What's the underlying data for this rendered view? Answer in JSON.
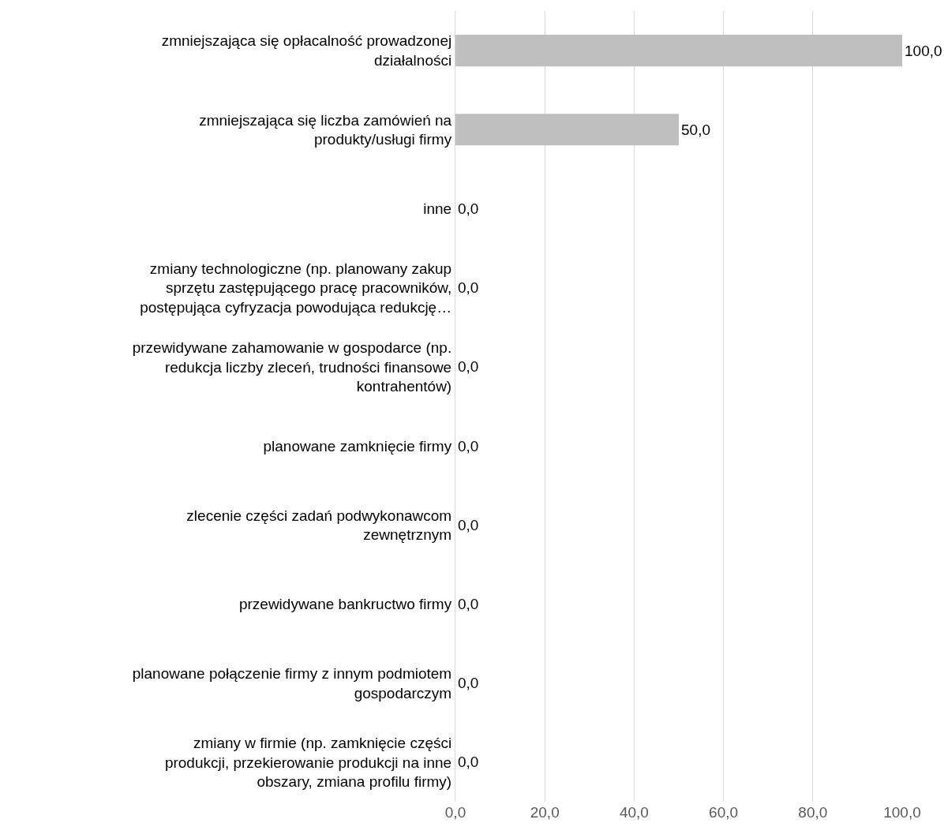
{
  "chart_data": {
    "type": "bar",
    "orientation": "horizontal",
    "categories": [
      "zmniejszająca się opłacalność prowadzonej działalności",
      "zmniejszająca się liczba zamówień na produkty/usługi firmy",
      "inne",
      "zmiany technologiczne (np. planowany zakup sprzętu zastępującego pracę pracowników, postępująca cyfryzacja powodująca redukcję…",
      "przewidywane zahamowanie w gospodarce (np. redukcja liczby zleceń, trudności finansowe kontrahentów)",
      "planowane zamknięcie firmy",
      "zlecenie części zadań podwykonawcom zewnętrznym",
      "przewidywane bankructwo firmy",
      "planowane połączenie firmy z innym podmiotem gospodarczym",
      "zmiany w firmie (np. zamknięcie części produkcji, przekierowanie produkcji na inne obszary, zmiana profilu firmy)"
    ],
    "values": [
      100,
      50,
      0,
      0,
      0,
      0,
      0,
      0,
      0,
      0
    ],
    "value_labels": [
      "100,0",
      "50,0",
      "0,0",
      "0,0",
      "0,0",
      "0,0",
      "0,0",
      "0,0",
      "0,0",
      "0,0"
    ],
    "color": "#bfbfbf",
    "xlim": [
      0,
      100
    ],
    "xticks": [
      {
        "value": 0,
        "label": "0,0"
      },
      {
        "value": 20,
        "label": "20,0"
      },
      {
        "value": 40,
        "label": "40,0"
      },
      {
        "value": 60,
        "label": "60,0"
      },
      {
        "value": 80,
        "label": "80,0"
      },
      {
        "value": 100,
        "label": "100,0"
      }
    ],
    "grid": "x"
  }
}
